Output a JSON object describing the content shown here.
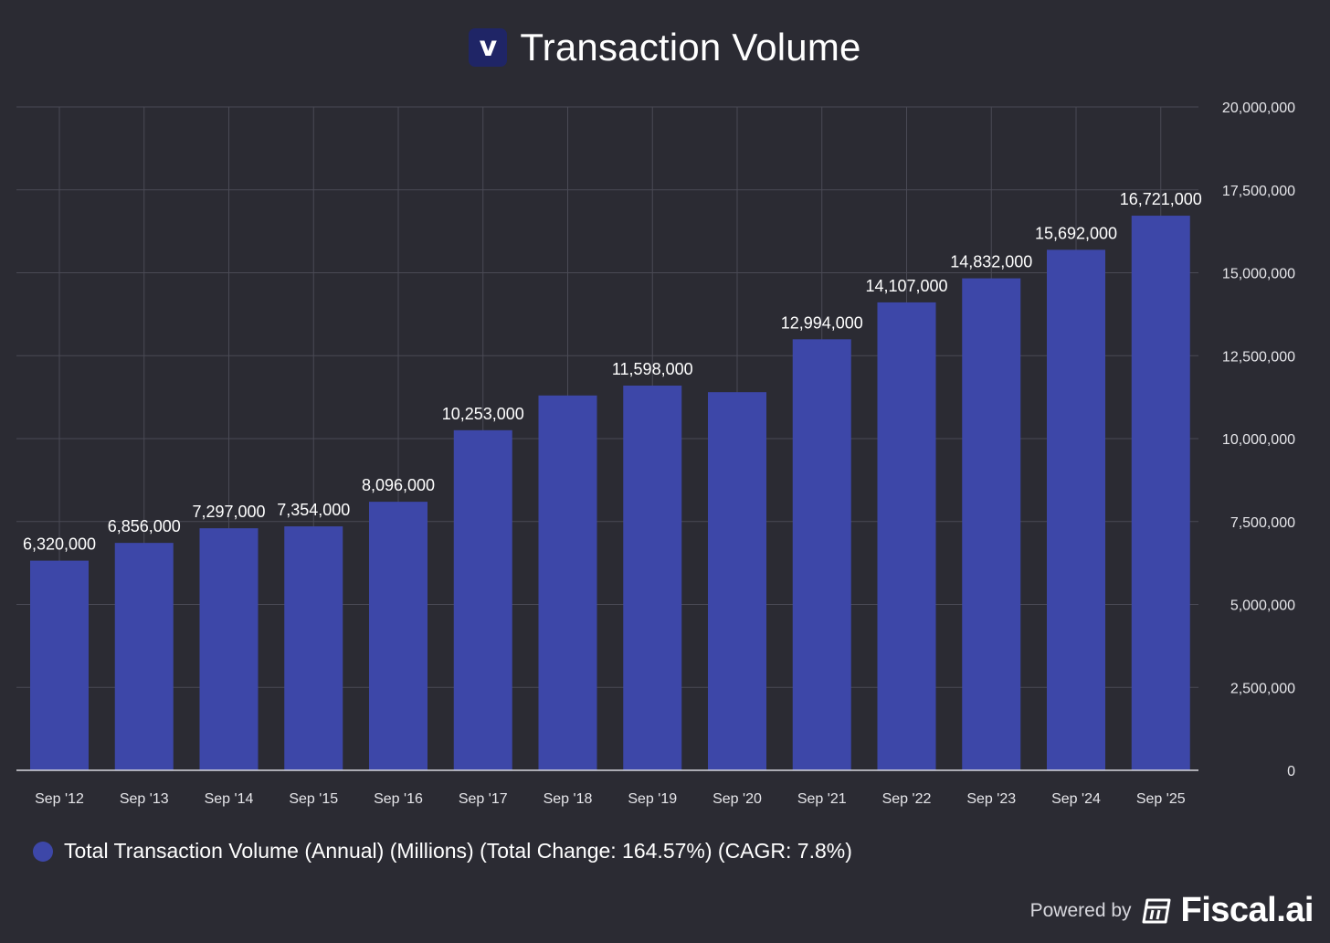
{
  "header": {
    "logo_letter": "v",
    "title": "Transaction Volume"
  },
  "legend": {
    "label": "Total Transaction Volume (Annual) (Millions) (Total Change: 164.57%) (CAGR: 7.8%)",
    "color": "#3d47a8"
  },
  "footer": {
    "powered_by": "Powered by",
    "brand": "Fiscal.ai",
    "brand_icon": "calculator-icon"
  },
  "chart_data": {
    "type": "bar",
    "title": "Transaction Volume",
    "categories": [
      "Sep '12",
      "Sep '13",
      "Sep '14",
      "Sep '15",
      "Sep '16",
      "Sep '17",
      "Sep '18",
      "Sep '19",
      "Sep '20",
      "Sep '21",
      "Sep '22",
      "Sep '23",
      "Sep '24",
      "Sep '25"
    ],
    "series": [
      {
        "name": "Total Transaction Volume (Annual) (Millions) (Total Change: 164.57%) (CAGR: 7.8%)",
        "color": "#3d47a8",
        "values": [
          6320000,
          6856000,
          7297000,
          7354000,
          8096000,
          10253000,
          11300000,
          11598000,
          11400000,
          12994000,
          14107000,
          14832000,
          15692000,
          16721000
        ],
        "data_labels": [
          "6,320,000",
          "6,856,000",
          "7,297,000",
          "7,354,000",
          "8,096,000",
          "10,253,000",
          "",
          "11,598,000",
          "",
          "12,994,000",
          "14,107,000",
          "14,832,000",
          "15,692,000",
          "16,721,000"
        ]
      }
    ],
    "ylim": [
      0,
      20000000
    ],
    "yticks": [
      0,
      2500000,
      5000000,
      7500000,
      10000000,
      12500000,
      15000000,
      17500000,
      20000000
    ],
    "ytick_labels": [
      "0",
      "2,500,000",
      "5,000,000",
      "7,500,000",
      "10,000,000",
      "12,500,000",
      "15,000,000",
      "17,500,000",
      "20,000,000"
    ],
    "y_axis_side": "right",
    "grid": true,
    "legend_position": "bottom-left"
  }
}
